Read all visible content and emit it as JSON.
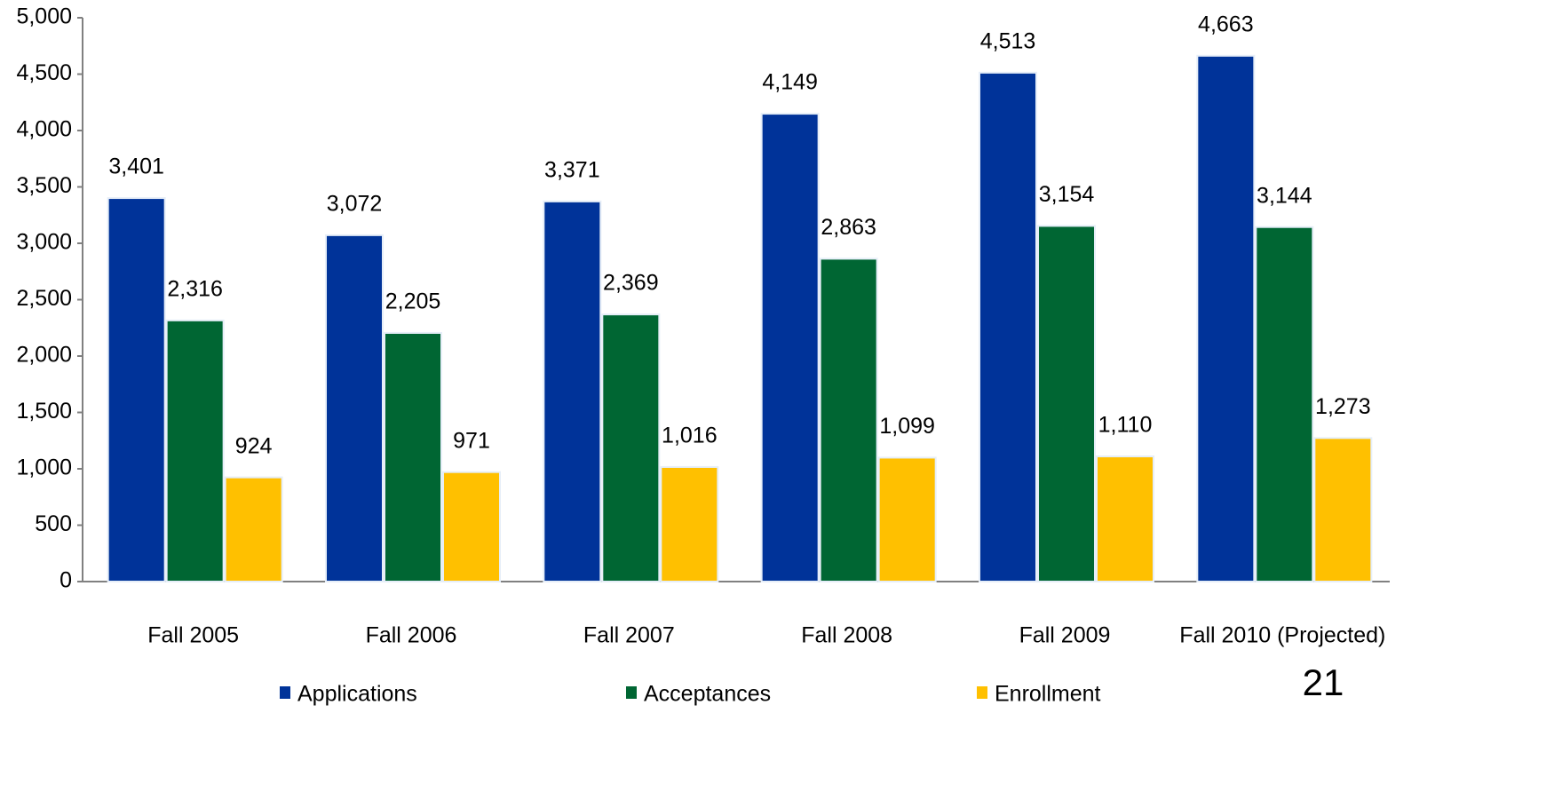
{
  "chart_data": {
    "type": "bar",
    "categories": [
      "Fall 2005",
      "Fall 2006",
      "Fall 2007",
      "Fall 2008",
      "Fall 2009",
      "Fall 2010 (Projected)"
    ],
    "series": [
      {
        "name": "Applications",
        "color": "#003399",
        "values": [
          3401,
          3072,
          3371,
          4149,
          4513,
          4663
        ],
        "value_labels": [
          "3,401",
          "3,072",
          "3,371",
          "4,149",
          "4,513",
          "4,663"
        ]
      },
      {
        "name": "Acceptances",
        "color": "#006633",
        "values": [
          2316,
          2205,
          2369,
          2863,
          3154,
          3144
        ],
        "value_labels": [
          "2,316",
          "2,205",
          "2,369",
          "2,863",
          "3,154",
          "3,144"
        ]
      },
      {
        "name": "Enrollment",
        "color": "#ffc000",
        "values": [
          924,
          971,
          1016,
          1099,
          1110,
          1273
        ],
        "value_labels": [
          "924",
          "971",
          "1,016",
          "1,099",
          "1,110",
          "1,273"
        ]
      }
    ],
    "ylim": [
      0,
      5000
    ],
    "yticks": [
      0,
      500,
      {
        "value": 1000,
        "label": "1,000"
      },
      {
        "value": 1500,
        "label": "1,500"
      },
      {
        "value": 2000,
        "label": "2,000"
      },
      {
        "value": 2500,
        "label": "2,500"
      },
      {
        "value": 3000,
        "label": "3,000"
      },
      {
        "value": 3500,
        "label": "3,500"
      },
      {
        "value": 4000,
        "label": "4,000"
      },
      {
        "value": 4500,
        "label": "4,500"
      },
      {
        "value": 5000,
        "label": "5,000"
      }
    ],
    "legend": "bottom",
    "page_number": "21"
  }
}
